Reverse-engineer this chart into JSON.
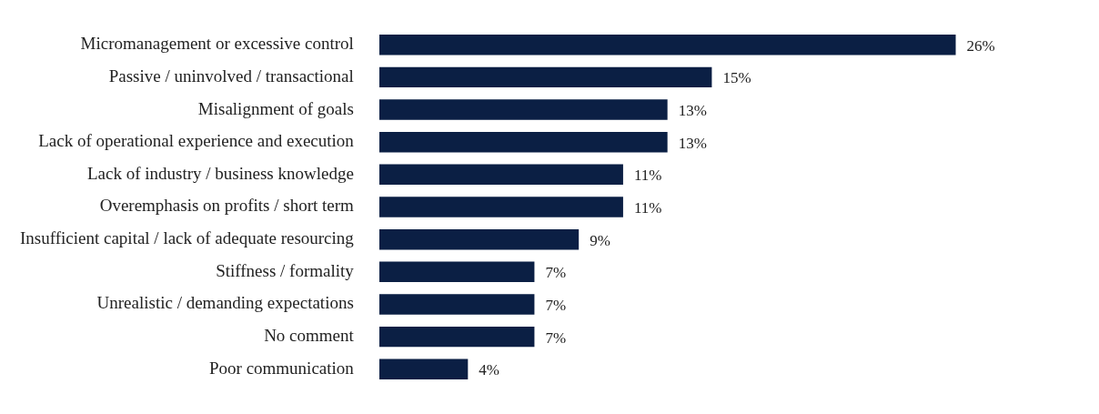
{
  "chart_data": {
    "type": "bar",
    "orientation": "horizontal",
    "tick_labels": "y",
    "legend": false,
    "categories": [
      "Micromanagement or excessive control",
      "Passive / uninvolved / transactional",
      "Misalignment of goals",
      "Lack of operational experience and execution",
      "Lack of industry / business knowledge",
      "Overemphasis on profits / short term",
      "Insufficient capital / lack of adequate resourcing",
      "Stiffness / formality",
      "Unrealistic / demanding expectations",
      "No comment",
      "Poor communication"
    ],
    "values": [
      26,
      15,
      13,
      13,
      11,
      11,
      9,
      7,
      7,
      7,
      4
    ],
    "value_labels": [
      "26%",
      "15%",
      "13%",
      "13%",
      "11%",
      "11%",
      "9%",
      "7%",
      "7%",
      "7%",
      "4%"
    ],
    "color": "#0b1f44"
  }
}
